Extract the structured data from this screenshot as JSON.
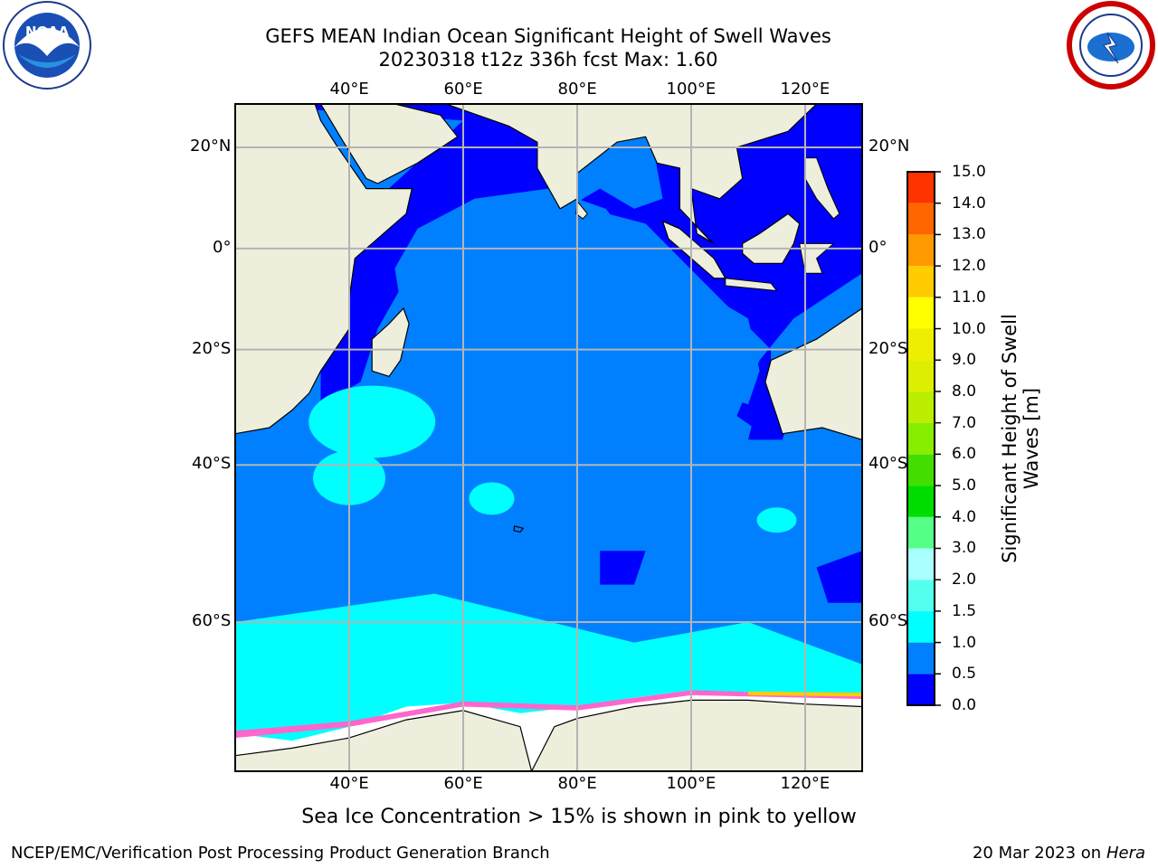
{
  "header": {
    "title_line1": "GEFS MEAN Indian Ocean Significant Height of Swell Waves",
    "title_line2": "20230318 t12z 336h fcst   Max: 1.60"
  },
  "logos": {
    "left_name": "noaa-logo",
    "left_text": "NOAA",
    "right_name": "nws-logo"
  },
  "map": {
    "extent": {
      "lon_min": 20,
      "lon_max": 130,
      "lat_min": -72,
      "lat_max": 28
    },
    "lon_ticks": [
      {
        "value": 40,
        "label": "40°E"
      },
      {
        "value": 60,
        "label": "60°E"
      },
      {
        "value": 80,
        "label": "80°E"
      },
      {
        "value": 100,
        "label": "100°E"
      },
      {
        "value": 120,
        "label": "120°E"
      }
    ],
    "lat_ticks": [
      {
        "value": 20,
        "label": "20°N"
      },
      {
        "value": 0,
        "label": "0°"
      },
      {
        "value": -20,
        "label": "20°S"
      },
      {
        "value": -40,
        "label": "40°S"
      },
      {
        "value": -60,
        "label": "60°S"
      }
    ],
    "colors": {
      "land": "#eeeedd",
      "ocean_main": "#0080ff",
      "ocean_low": "#0000ff",
      "swell_1_1_5": "#00ffff",
      "ice": "#ff66cc",
      "ice_edge": "#ffcc00",
      "grid": "#b4b4b4"
    }
  },
  "colorbar": {
    "title": "Significant Height of Swell Waves [m]",
    "title_line1": "Significant Height of Swell",
    "title_line2": "Waves [m]",
    "levels": [
      "0.0",
      "0.5",
      "1.0",
      "1.5",
      "2.0",
      "3.0",
      "4.0",
      "5.0",
      "6.0",
      "7.0",
      "8.0",
      "9.0",
      "10.0",
      "11.0",
      "12.0",
      "13.0",
      "14.0",
      "15.0"
    ],
    "colors": [
      "#0000ff",
      "#0080ff",
      "#00ffff",
      "#55ffee",
      "#aaffff",
      "#55ff88",
      "#00dd00",
      "#44dd00",
      "#88ee00",
      "#bbee00",
      "#ddee00",
      "#eeee00",
      "#ffff00",
      "#ffcc00",
      "#ff9900",
      "#ff6600",
      "#ff3300"
    ]
  },
  "footer": {
    "note": "Sea Ice Concentration > 15% is shown in pink to yellow",
    "credit": "NCEP/EMC/Verification Post Processing Product Generation Branch",
    "date": "20 Mar 2023 on",
    "machine": "Hera"
  }
}
